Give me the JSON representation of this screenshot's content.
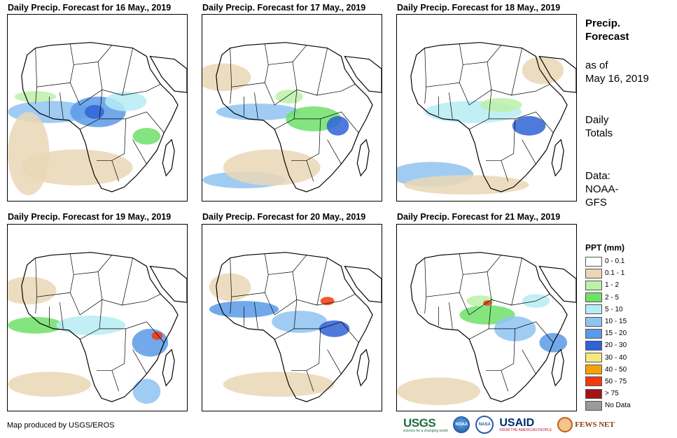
{
  "panels": [
    {
      "title": "Daily Precip. Forecast for 16 May., 2019",
      "day": 16
    },
    {
      "title": "Daily Precip. Forecast for 17 May., 2019",
      "day": 17
    },
    {
      "title": "Daily Precip. Forecast for 18 May., 2019",
      "day": 18
    },
    {
      "title": "Daily Precip. Forecast for 19 May., 2019",
      "day": 19
    },
    {
      "title": "Daily Precip. Forecast for 20 May., 2019",
      "day": 20
    },
    {
      "title": "Daily Precip. Forecast for 21 May., 2019",
      "day": 21
    }
  ],
  "side": {
    "title_line1": "Precip.",
    "title_line2": "Forecast",
    "asof_line1": "as of",
    "asof_line2": "May 16, 2019",
    "totals_line1": "Daily",
    "totals_line2": "Totals",
    "data_line1": "Data:",
    "data_line2": "NOAA-",
    "data_line3": "GFS"
  },
  "legend": {
    "title": "PPT (mm)",
    "items": [
      {
        "label": "0 - 0.1",
        "color": "#ffffff"
      },
      {
        "label": "0.1 - 1",
        "color": "#ead7b5"
      },
      {
        "label": "1 - 2",
        "color": "#bdf0a9"
      },
      {
        "label": "2 - 5",
        "color": "#6fe06a"
      },
      {
        "label": "5 - 10",
        "color": "#b7ecf5"
      },
      {
        "label": "10 - 15",
        "color": "#8fc3f2"
      },
      {
        "label": "15 - 20",
        "color": "#5b9ae8"
      },
      {
        "label": "20 - 30",
        "color": "#2f63d6"
      },
      {
        "label": "30 - 40",
        "color": "#f7e77f"
      },
      {
        "label": "40 - 50",
        "color": "#f4a20a"
      },
      {
        "label": "50 - 75",
        "color": "#f23a0c"
      },
      {
        "label": "> 75",
        "color": "#a11414"
      },
      {
        "label": "No Data",
        "color": "#9a9a9a"
      }
    ]
  },
  "footer": {
    "credit": "Map produced by USGS/EROS"
  },
  "logos": {
    "usgs": "USGS",
    "usgs_tagline": "science for a changing world",
    "noaa": "NOAA",
    "nasa": "NASA",
    "usaid": "USAID",
    "usaid_tagline": "FROM THE AMERICAN PEOPLE",
    "fews": "FEWS NET"
  }
}
